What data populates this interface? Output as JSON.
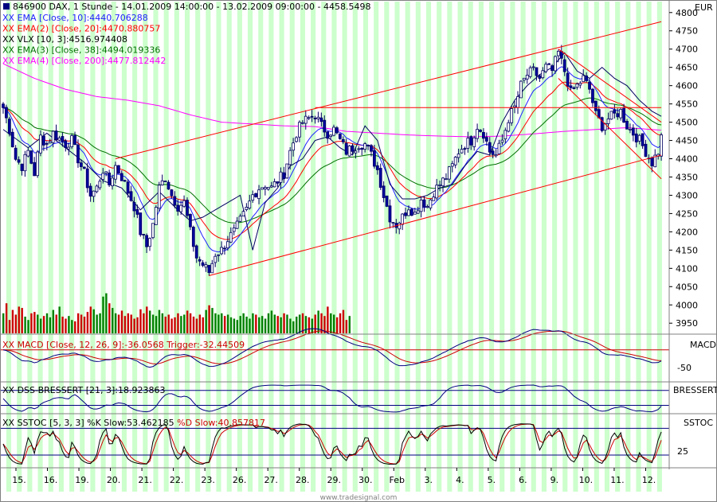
{
  "header": {
    "symbol_line": "846900  DAX, 1 Stunde - 14.01.2009 14:00:00 - 13.02.2009 09:00:00 - 4458.5498",
    "indicator_lines": [
      {
        "prefix": "XX",
        "text": "EMA [Close, 10]:4440.706288",
        "color": "#2020ff"
      },
      {
        "prefix": "XX",
        "text": "EMA(2) [Close, 20]:4470.880757",
        "color": "#ff0000"
      },
      {
        "prefix": "XX",
        "text": "VLX [10, 3]:4516.974408",
        "color": "#000000"
      },
      {
        "prefix": "XX",
        "text": "EMA(3) [Close, 38]:4494.019336",
        "color": "#007000"
      },
      {
        "prefix": "XX",
        "text": "EMA(4) [Close, 200]:4477.812442",
        "color": "#ff00ff"
      }
    ]
  },
  "colors": {
    "band": "#ccffcc",
    "candle_up": "#1010c0",
    "candle_down": "#0000a0",
    "ema10": "#2020ff",
    "ema20": "#ff0000",
    "vlx": "#000060",
    "ema38": "#007000",
    "ema200": "#ff00ff",
    "trendline": "#ff0000",
    "volume_up": "#008000",
    "volume_down": "#cc0000"
  },
  "panels": {
    "price": {
      "axis_label": "EUR"
    },
    "macd": {
      "label": "XX MACD [Close, 12, 26, 9]:-36.0568  Trigger:-32.44509",
      "axis_label": "MACD",
      "tick": "-50"
    },
    "dss": {
      "label": "XX DSS-BRESSERT [21, 3]:18.923863",
      "axis_label": "BRESSERT"
    },
    "sstoc": {
      "label_prefix": "XX SSTOC [5, 3, 3]  %K Slow:53.462185 ",
      "label_suffix": "%D Slow:40.857817",
      "axis_label": "SSTOC",
      "tick": "25"
    }
  },
  "watermark": "www.tradesignal.com",
  "chart_data": {
    "type": "candlestick",
    "title": "846900  DAX, 1 Stunde - 14.01.2009 14:00:00 - 13.02.2009 09:00:00 - 4458.5498",
    "x_labels": [
      "15.",
      "16.",
      "19.",
      "20.",
      "21.",
      "22.",
      "23.",
      "26.",
      "27.",
      "28.",
      "29.",
      "30.",
      "Feb",
      "3.",
      "4.",
      "5.",
      "6.",
      "9.",
      "10.",
      "11.",
      "12."
    ],
    "y_ticks": [
      3950,
      4000,
      4050,
      4100,
      4150,
      4200,
      4250,
      4300,
      4350,
      4400,
      4450,
      4500,
      4550,
      4600,
      4650,
      4700,
      4750,
      4800
    ],
    "ylim": [
      3920,
      4830
    ],
    "close_path": [
      [
        0,
        4540
      ],
      [
        2,
        4480
      ],
      [
        4,
        4400
      ],
      [
        6,
        4380
      ],
      [
        8,
        4420
      ],
      [
        10,
        4360
      ],
      [
        12,
        4460
      ],
      [
        14,
        4440
      ],
      [
        16,
        4470
      ],
      [
        18,
        4455
      ],
      [
        20,
        4440
      ],
      [
        22,
        4450
      ],
      [
        24,
        4400
      ],
      [
        26,
        4360
      ],
      [
        28,
        4300
      ],
      [
        30,
        4320
      ],
      [
        32,
        4370
      ],
      [
        34,
        4330
      ],
      [
        36,
        4380
      ],
      [
        38,
        4350
      ],
      [
        40,
        4310
      ],
      [
        42,
        4270
      ],
      [
        44,
        4200
      ],
      [
        46,
        4160
      ],
      [
        48,
        4220
      ],
      [
        50,
        4320
      ],
      [
        52,
        4350
      ],
      [
        54,
        4300
      ],
      [
        56,
        4270
      ],
      [
        58,
        4280
      ],
      [
        60,
        4200
      ],
      [
        62,
        4130
      ],
      [
        64,
        4110
      ],
      [
        66,
        4090
      ],
      [
        68,
        4140
      ],
      [
        70,
        4150
      ],
      [
        72,
        4180
      ],
      [
        74,
        4200
      ],
      [
        76,
        4230
      ],
      [
        78,
        4260
      ],
      [
        80,
        4300
      ],
      [
        82,
        4320
      ],
      [
        84,
        4330
      ],
      [
        86,
        4320
      ],
      [
        88,
        4340
      ],
      [
        90,
        4360
      ],
      [
        92,
        4420
      ],
      [
        94,
        4470
      ],
      [
        96,
        4500
      ],
      [
        98,
        4510
      ],
      [
        100,
        4520
      ],
      [
        102,
        4490
      ],
      [
        104,
        4470
      ],
      [
        106,
        4480
      ],
      [
        108,
        4450
      ],
      [
        110,
        4420
      ],
      [
        112,
        4430
      ],
      [
        114,
        4440
      ],
      [
        116,
        4440
      ],
      [
        118,
        4410
      ],
      [
        120,
        4370
      ],
      [
        122,
        4300
      ],
      [
        124,
        4240
      ],
      [
        126,
        4220
      ],
      [
        128,
        4240
      ],
      [
        130,
        4270
      ],
      [
        132,
        4250
      ],
      [
        134,
        4290
      ],
      [
        136,
        4270
      ],
      [
        138,
        4310
      ],
      [
        140,
        4330
      ],
      [
        142,
        4350
      ],
      [
        144,
        4380
      ],
      [
        146,
        4420
      ],
      [
        148,
        4440
      ],
      [
        150,
        4450
      ],
      [
        152,
        4490
      ],
      [
        154,
        4470
      ],
      [
        156,
        4420
      ],
      [
        158,
        4410
      ],
      [
        160,
        4450
      ],
      [
        162,
        4510
      ],
      [
        164,
        4540
      ],
      [
        166,
        4600
      ],
      [
        168,
        4630
      ],
      [
        170,
        4640
      ],
      [
        172,
        4620
      ],
      [
        174,
        4650
      ],
      [
        176,
        4640
      ],
      [
        178,
        4690
      ],
      [
        180,
        4640
      ],
      [
        182,
        4580
      ],
      [
        184,
        4600
      ],
      [
        186,
        4620
      ],
      [
        188,
        4590
      ],
      [
        190,
        4520
      ],
      [
        192,
        4490
      ],
      [
        194,
        4510
      ],
      [
        196,
        4520
      ],
      [
        198,
        4530
      ],
      [
        200,
        4490
      ],
      [
        202,
        4470
      ],
      [
        204,
        4450
      ],
      [
        206,
        4420
      ],
      [
        208,
        4390
      ],
      [
        210,
        4420
      ],
      [
        211,
        4458
      ]
    ],
    "vlx_path": [
      [
        0,
        4480
      ],
      [
        8,
        4430
      ],
      [
        14,
        4470
      ],
      [
        20,
        4430
      ],
      [
        26,
        4390
      ],
      [
        32,
        4340
      ],
      [
        38,
        4320
      ],
      [
        44,
        4260
      ],
      [
        50,
        4310
      ],
      [
        56,
        4260
      ],
      [
        60,
        4230
      ],
      [
        64,
        4240
      ],
      [
        68,
        4260
      ],
      [
        72,
        4280
      ],
      [
        76,
        4300
      ],
      [
        80,
        4150
      ],
      [
        84,
        4280
      ],
      [
        88,
        4320
      ],
      [
        92,
        4380
      ],
      [
        96,
        4400
      ],
      [
        100,
        4450
      ],
      [
        104,
        4460
      ],
      [
        108,
        4430
      ],
      [
        112,
        4410
      ],
      [
        116,
        4490
      ],
      [
        120,
        4450
      ],
      [
        124,
        4330
      ],
      [
        128,
        4290
      ],
      [
        132,
        4290
      ],
      [
        136,
        4300
      ],
      [
        140,
        4320
      ],
      [
        144,
        4330
      ],
      [
        148,
        4380
      ],
      [
        152,
        4420
      ],
      [
        156,
        4410
      ],
      [
        160,
        4500
      ],
      [
        164,
        4560
      ],
      [
        168,
        4600
      ],
      [
        172,
        4630
      ],
      [
        176,
        4650
      ],
      [
        180,
        4690
      ],
      [
        184,
        4640
      ],
      [
        188,
        4620
      ],
      [
        192,
        4650
      ],
      [
        196,
        4620
      ],
      [
        200,
        4600
      ],
      [
        204,
        4560
      ],
      [
        208,
        4530
      ],
      [
        211,
        4516
      ]
    ],
    "ema200_path": [
      [
        0,
        4660
      ],
      [
        10,
        4620
      ],
      [
        20,
        4590
      ],
      [
        30,
        4570
      ],
      [
        40,
        4560
      ],
      [
        50,
        4545
      ],
      [
        60,
        4520
      ],
      [
        70,
        4500
      ],
      [
        80,
        4495
      ],
      [
        90,
        4490
      ],
      [
        100,
        4488
      ],
      [
        110,
        4475
      ],
      [
        120,
        4470
      ],
      [
        130,
        4465
      ],
      [
        140,
        4462
      ],
      [
        150,
        4460
      ],
      [
        160,
        4462
      ],
      [
        170,
        4468
      ],
      [
        180,
        4475
      ],
      [
        190,
        4480
      ],
      [
        200,
        4485
      ],
      [
        211,
        4478
      ]
    ],
    "trendlines": [
      {
        "from": [
          36,
          4400
        ],
        "to": [
          211,
          4775
        ]
      },
      {
        "from": [
          66,
          4080
        ],
        "to": [
          211,
          4410
        ]
      },
      {
        "from": [
          100,
          4540
        ],
        "to": [
          211,
          4540
        ]
      },
      {
        "from": [
          178,
          4700
        ],
        "to": [
          211,
          4500
        ]
      },
      {
        "from": [
          178,
          4620
        ],
        "to": [
          211,
          4345
        ]
      }
    ],
    "volume_range": [
      0,
      100
    ],
    "volume": [
      30,
      45,
      20,
      35,
      28,
      40,
      38,
      25,
      20,
      30,
      32,
      28,
      22,
      26,
      30,
      24,
      35,
      28,
      40,
      25,
      22,
      26,
      20,
      18,
      30,
      28,
      25,
      32,
      40,
      36,
      28,
      30,
      55,
      60,
      45,
      38,
      30,
      28,
      34,
      26,
      30,
      28,
      22,
      24,
      36,
      30,
      40,
      34,
      28,
      26,
      35,
      30,
      25,
      28,
      22,
      24,
      30,
      26,
      28,
      34,
      30,
      25,
      22,
      28,
      24,
      35,
      42,
      38,
      30,
      28,
      30,
      26,
      28,
      24,
      22,
      20,
      26,
      30,
      25,
      22,
      30,
      28,
      24,
      26,
      22,
      30,
      34,
      28,
      26,
      24,
      30,
      28,
      22,
      18,
      25,
      28,
      30,
      26,
      24,
      22,
      28,
      34,
      30,
      26,
      40,
      30,
      28,
      24,
      30,
      35,
      20,
      26
    ],
    "macd": {
      "ylim": [
        -90,
        30
      ]
    },
    "dss": {
      "ylim": [
        0,
        100
      ]
    },
    "sstoc": {
      "ylim": [
        0,
        100
      ]
    }
  }
}
